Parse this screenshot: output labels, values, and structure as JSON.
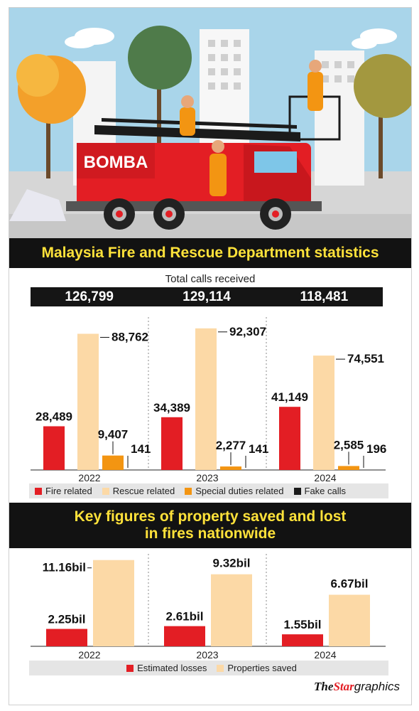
{
  "banner": {
    "truck_label": "BOMBA",
    "title": "Malaysia Fire and Rescue Department statistics"
  },
  "calls": {
    "subtitle": "Total calls received",
    "totals": [
      "126,799",
      "129,114",
      "118,481"
    ]
  },
  "property": {
    "title_line1": "Key figures of property saved and lost",
    "title_line2": "in fires nationwide"
  },
  "colors": {
    "fire": "#e31e24",
    "rescue": "#fcd9a6",
    "special": "#f39512",
    "fake": "#1a1a1a",
    "banner_bg": "#121212",
    "banner_text": "#ffe23a"
  },
  "chart_data": [
    {
      "type": "bar",
      "categories": [
        "2022",
        "2023",
        "2024"
      ],
      "series": [
        {
          "name": "Fire related",
          "values": [
            28489,
            34389,
            41149
          ],
          "labels": [
            "28,489",
            "34,389",
            "41,149"
          ]
        },
        {
          "name": "Rescue related",
          "values": [
            88762,
            92307,
            74551
          ],
          "labels": [
            "88,762",
            "92,307",
            "74,551"
          ]
        },
        {
          "name": "Special duties related",
          "values": [
            9407,
            2277,
            2585
          ],
          "labels": [
            "9,407",
            "2,277",
            "2,585"
          ]
        },
        {
          "name": "Fake calls",
          "values": [
            141,
            141,
            196
          ],
          "labels": [
            "141",
            "141",
            "196"
          ]
        }
      ],
      "legend": [
        "Fire related",
        "Rescue related",
        "Special duties related",
        "Fake calls"
      ],
      "legend_position": "bottom",
      "ylim": [
        0,
        100000
      ],
      "grid": false
    },
    {
      "type": "bar",
      "categories": [
        "2022",
        "2023",
        "2024"
      ],
      "series": [
        {
          "name": "Estimated losses",
          "values": [
            2.25,
            2.61,
            1.55
          ],
          "labels": [
            "2.25bil",
            "2.61bil",
            "1.55bil"
          ]
        },
        {
          "name": "Properties saved",
          "values": [
            11.16,
            9.32,
            6.67
          ],
          "labels": [
            "11.16bil",
            "9.32bil",
            "6.67bil"
          ]
        }
      ],
      "legend": [
        "Estimated losses",
        "Properties saved"
      ],
      "legend_position": "bottom",
      "ylim": [
        0,
        12
      ],
      "grid": false
    }
  ],
  "credit": {
    "brand_the": "The",
    "brand_star": "Star",
    "brand_suffix": "graphics"
  }
}
